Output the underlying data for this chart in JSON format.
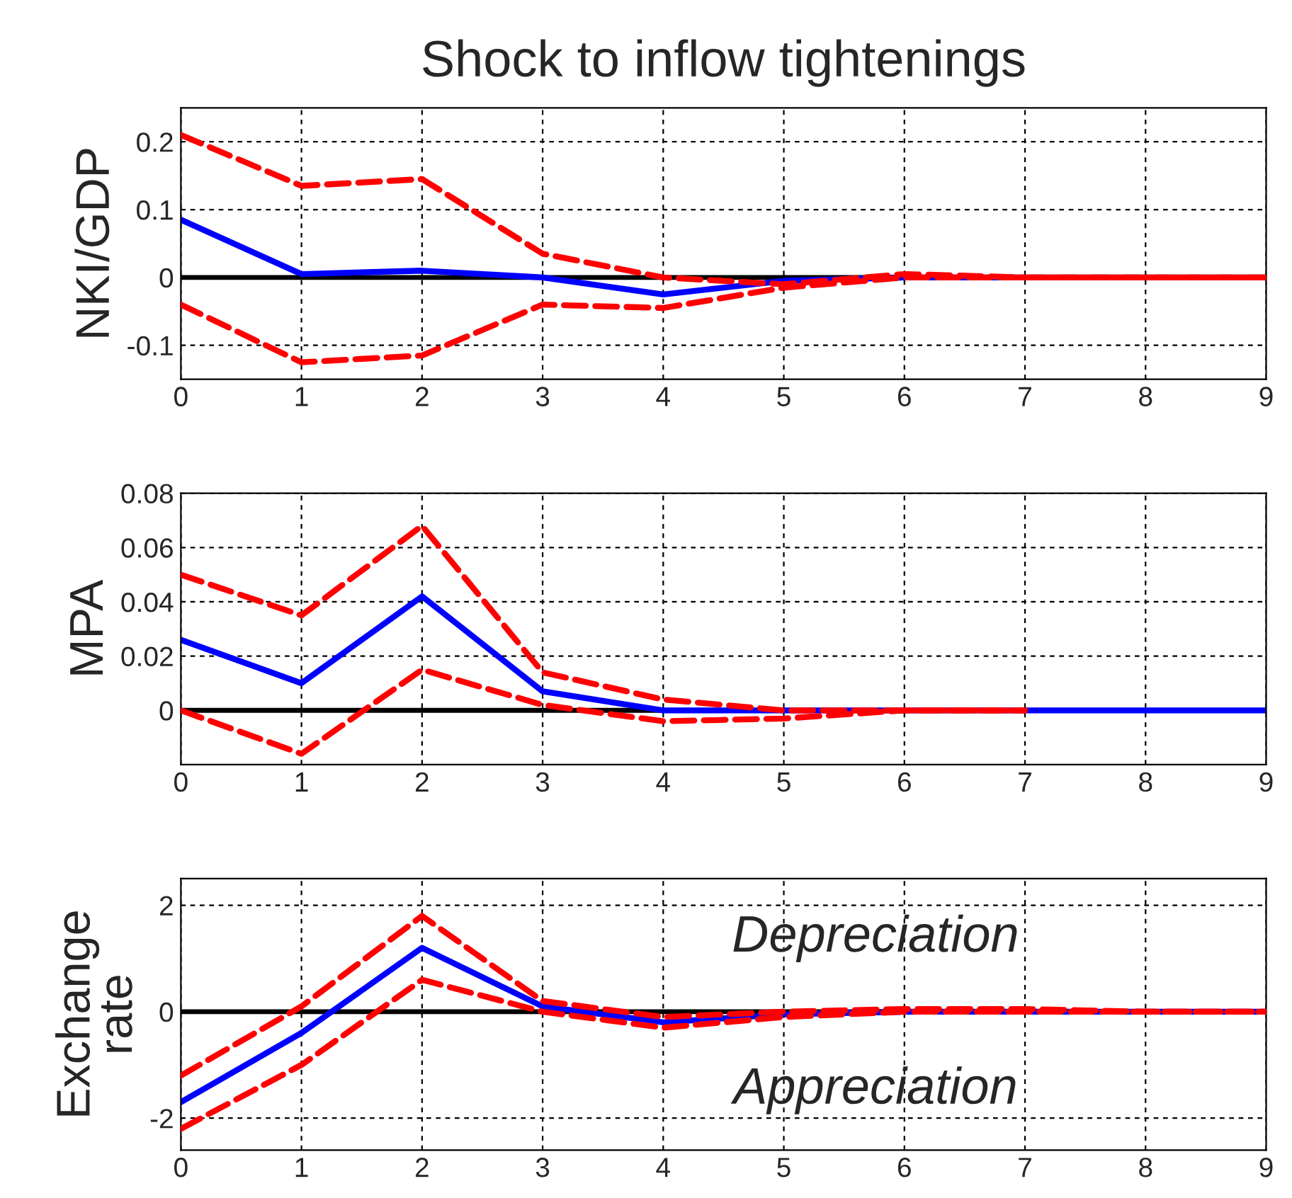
{
  "chart_data": [
    {
      "type": "line",
      "title": "Shock to inflow tightenings",
      "ylabel": "NKI/GDP",
      "x": [
        0,
        1,
        2,
        3,
        4,
        5,
        6,
        7,
        8,
        9
      ],
      "xlim": [
        0,
        9
      ],
      "xticks": [
        0,
        1,
        2,
        3,
        4,
        5,
        6,
        7,
        8,
        9
      ],
      "ylim": [
        -0.15,
        0.25
      ],
      "yticks": [
        -0.1,
        0,
        0.1,
        0.2
      ],
      "grid": true,
      "ref_lines": [
        {
          "axis": "y",
          "value": 0,
          "color": "#000000",
          "line_style": "solid"
        }
      ],
      "series": [
        {
          "color": "#ff0000",
          "line_style": "dashed",
          "values": [
            0.21,
            0.135,
            0.145,
            0.035,
            0,
            -0.01,
            0.005,
            0,
            0,
            0
          ]
        },
        {
          "color": "#ff0000",
          "line_style": "dashed",
          "values": [
            -0.04,
            -0.125,
            -0.115,
            -0.04,
            -0.045,
            -0.015,
            0,
            0,
            0,
            0
          ]
        },
        {
          "color": "#0000ff",
          "line_style": "solid",
          "values": [
            0.085,
            0.005,
            0.01,
            0,
            -0.025,
            -0.005,
            0,
            0,
            0,
            0
          ]
        }
      ]
    },
    {
      "type": "line",
      "ylabel": "MPA",
      "x": [
        0,
        1,
        2,
        3,
        4,
        5,
        6,
        7,
        8,
        9
      ],
      "xlim": [
        0,
        9
      ],
      "xticks": [
        0,
        1,
        2,
        3,
        4,
        5,
        6,
        7,
        8,
        9
      ],
      "ylim": [
        -0.02,
        0.08
      ],
      "yticks": [
        0,
        0.02,
        0.04,
        0.06,
        0.08
      ],
      "grid": true,
      "ref_lines": [
        {
          "axis": "y",
          "value": 0,
          "color": "#000000",
          "line_style": "solid"
        }
      ],
      "series": [
        {
          "color": "#ff0000",
          "line_style": "dashed",
          "values": [
            0.05,
            0.035,
            0.068,
            0.014,
            0.004,
            0,
            0,
            0,
            null,
            null
          ]
        },
        {
          "color": "#ff0000",
          "line_style": "dashed",
          "values": [
            0,
            -0.016,
            0.015,
            0.002,
            -0.004,
            -0.003,
            0,
            0,
            null,
            null
          ]
        },
        {
          "color": "#0000ff",
          "line_style": "solid",
          "values": [
            0.026,
            0.01,
            0.042,
            0.007,
            0,
            0,
            0,
            0,
            0,
            0
          ]
        }
      ]
    },
    {
      "type": "line",
      "ylabel": "Exchange\nrate",
      "x": [
        0,
        1,
        2,
        3,
        4,
        5,
        6,
        7,
        8,
        9
      ],
      "xlim": [
        0,
        9
      ],
      "xticks": [
        0,
        1,
        2,
        3,
        4,
        5,
        6,
        7,
        8,
        9
      ],
      "ylim": [
        -2.6,
        2.5
      ],
      "yticks": [
        -2,
        0,
        2
      ],
      "grid": true,
      "ref_lines": [
        {
          "axis": "y",
          "value": 0,
          "color": "#000000",
          "line_style": "solid"
        }
      ],
      "annotations": [
        "Depreciation",
        "Appreciation"
      ],
      "series": [
        {
          "color": "#ff0000",
          "line_style": "dashed",
          "values": [
            -1.2,
            0.1,
            1.8,
            0.2,
            -0.1,
            0,
            0.05,
            0.05,
            0,
            0
          ]
        },
        {
          "color": "#ff0000",
          "line_style": "dashed",
          "values": [
            -2.2,
            -1.0,
            0.6,
            0,
            -0.3,
            -0.1,
            0,
            0,
            0,
            0
          ]
        },
        {
          "color": "#0000ff",
          "line_style": "solid",
          "values": [
            -1.7,
            -0.4,
            1.2,
            0.1,
            -0.2,
            -0.05,
            0,
            0,
            0,
            0
          ]
        }
      ]
    }
  ]
}
